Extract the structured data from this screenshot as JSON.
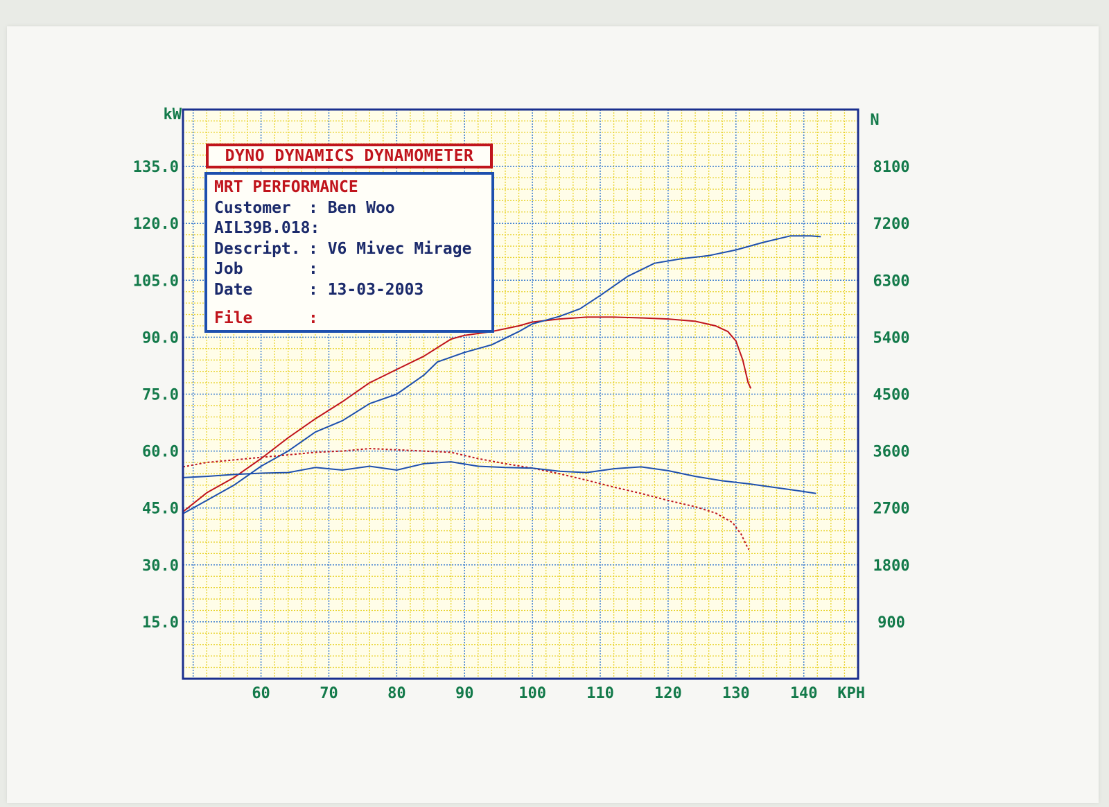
{
  "info_box": {
    "title": "DYNO DYNAMICS DYNAMOMETER",
    "company": "MRT PERFORMANCE",
    "customer_label": "Customer",
    "customer": "Ben Woo",
    "run_id": "AIL39B.018:",
    "descript_label": "Descript.",
    "descript": "V6 Mivec Mirage",
    "job_label": "Job",
    "job": "",
    "date_label": "Date",
    "date": "13-03-2003",
    "file_label": "File",
    "file": ""
  },
  "colors": {
    "background": "#fffde8",
    "grid_yellow": "#e8d22a",
    "grid_blue": "#3f7fd0",
    "frame": "#1a2f8e",
    "axis_text": "#137a4a",
    "red": "#c0141c",
    "blue": "#1d4fae"
  },
  "chart_data": {
    "type": "line",
    "title": "",
    "xlabel": "KPH",
    "ylabel_left": "kW",
    "ylabel_right": "N",
    "xlim": [
      48.5,
      148
    ],
    "ylim_left": [
      0,
      150
    ],
    "ylim_right": [
      0,
      9000
    ],
    "x_ticks": [
      60,
      70,
      80,
      90,
      100,
      110,
      120,
      130,
      140
    ],
    "y_ticks_left": [
      "15.0",
      "30.0",
      "45.0",
      "60.0",
      "75.0",
      "90.0",
      "105.0",
      "120.0",
      "135.0"
    ],
    "y_ticks_right": [
      "900",
      "1800",
      "2700",
      "3600",
      "4500",
      "5400",
      "6300",
      "7200",
      "8100"
    ],
    "grid": true,
    "series": [
      {
        "axis": "left",
        "color": "#c0141c",
        "style": "solid",
        "points": [
          [
            48.5,
            44
          ],
          [
            52,
            49
          ],
          [
            56,
            53
          ],
          [
            60,
            58
          ],
          [
            64,
            63.5
          ],
          [
            68,
            68.5
          ],
          [
            72,
            73
          ],
          [
            76,
            78
          ],
          [
            80,
            81.5
          ],
          [
            84,
            85
          ],
          [
            88,
            89.5
          ],
          [
            90,
            90.5
          ],
          [
            94,
            91.5
          ],
          [
            98,
            93
          ],
          [
            100,
            94
          ],
          [
            104,
            94.8
          ],
          [
            108,
            95.3
          ],
          [
            112,
            95.3
          ],
          [
            116,
            95.1
          ],
          [
            120,
            94.8
          ],
          [
            124,
            94.2
          ],
          [
            127,
            93
          ],
          [
            128.8,
            91.5
          ],
          [
            130,
            89
          ],
          [
            131,
            84
          ],
          [
            131.8,
            78
          ],
          [
            132.2,
            76.5
          ]
        ]
      },
      {
        "axis": "left",
        "color": "#1d4fae",
        "style": "solid",
        "points": [
          [
            48.5,
            43.5
          ],
          [
            52,
            47
          ],
          [
            56,
            51
          ],
          [
            60,
            56
          ],
          [
            64,
            60
          ],
          [
            68,
            65
          ],
          [
            72,
            68
          ],
          [
            76,
            72.5
          ],
          [
            80,
            75
          ],
          [
            84,
            80
          ],
          [
            86,
            83.5
          ],
          [
            90,
            86
          ],
          [
            94,
            88
          ],
          [
            98,
            91.5
          ],
          [
            100,
            93.5
          ],
          [
            104,
            95.5
          ],
          [
            107,
            97.5
          ],
          [
            110,
            101
          ],
          [
            114,
            106
          ],
          [
            118,
            109.5
          ],
          [
            122,
            110.7
          ],
          [
            126,
            111.5
          ],
          [
            130,
            113
          ],
          [
            134,
            115
          ],
          [
            138,
            116.7
          ],
          [
            141,
            116.7
          ],
          [
            142.5,
            116.5
          ]
        ]
      },
      {
        "axis": "right",
        "color": "#c0141c",
        "style": "dotted",
        "points": [
          [
            48.5,
            3350
          ],
          [
            52,
            3420
          ],
          [
            56,
            3460
          ],
          [
            60,
            3500
          ],
          [
            64,
            3540
          ],
          [
            68,
            3580
          ],
          [
            72,
            3600
          ],
          [
            76,
            3640
          ],
          [
            80,
            3620
          ],
          [
            84,
            3600
          ],
          [
            88,
            3580
          ],
          [
            92,
            3480
          ],
          [
            96,
            3400
          ],
          [
            100,
            3330
          ],
          [
            104,
            3240
          ],
          [
            108,
            3140
          ],
          [
            112,
            3030
          ],
          [
            116,
            2930
          ],
          [
            120,
            2820
          ],
          [
            124,
            2720
          ],
          [
            127,
            2620
          ],
          [
            129.5,
            2470
          ],
          [
            130.8,
            2280
          ],
          [
            131.5,
            2120
          ],
          [
            131.9,
            2040
          ]
        ]
      },
      {
        "axis": "right",
        "color": "#1d4fae",
        "style": "solid",
        "points": [
          [
            48.5,
            3180
          ],
          [
            52,
            3200
          ],
          [
            56,
            3230
          ],
          [
            60,
            3250
          ],
          [
            64,
            3260
          ],
          [
            68,
            3340
          ],
          [
            72,
            3300
          ],
          [
            76,
            3360
          ],
          [
            80,
            3300
          ],
          [
            84,
            3400
          ],
          [
            88,
            3430
          ],
          [
            92,
            3360
          ],
          [
            96,
            3340
          ],
          [
            100,
            3330
          ],
          [
            104,
            3280
          ],
          [
            108,
            3260
          ],
          [
            112,
            3320
          ],
          [
            116,
            3350
          ],
          [
            120,
            3290
          ],
          [
            124,
            3200
          ],
          [
            128,
            3130
          ],
          [
            132,
            3080
          ],
          [
            136,
            3020
          ],
          [
            140,
            2960
          ],
          [
            141.8,
            2930
          ]
        ]
      }
    ]
  }
}
